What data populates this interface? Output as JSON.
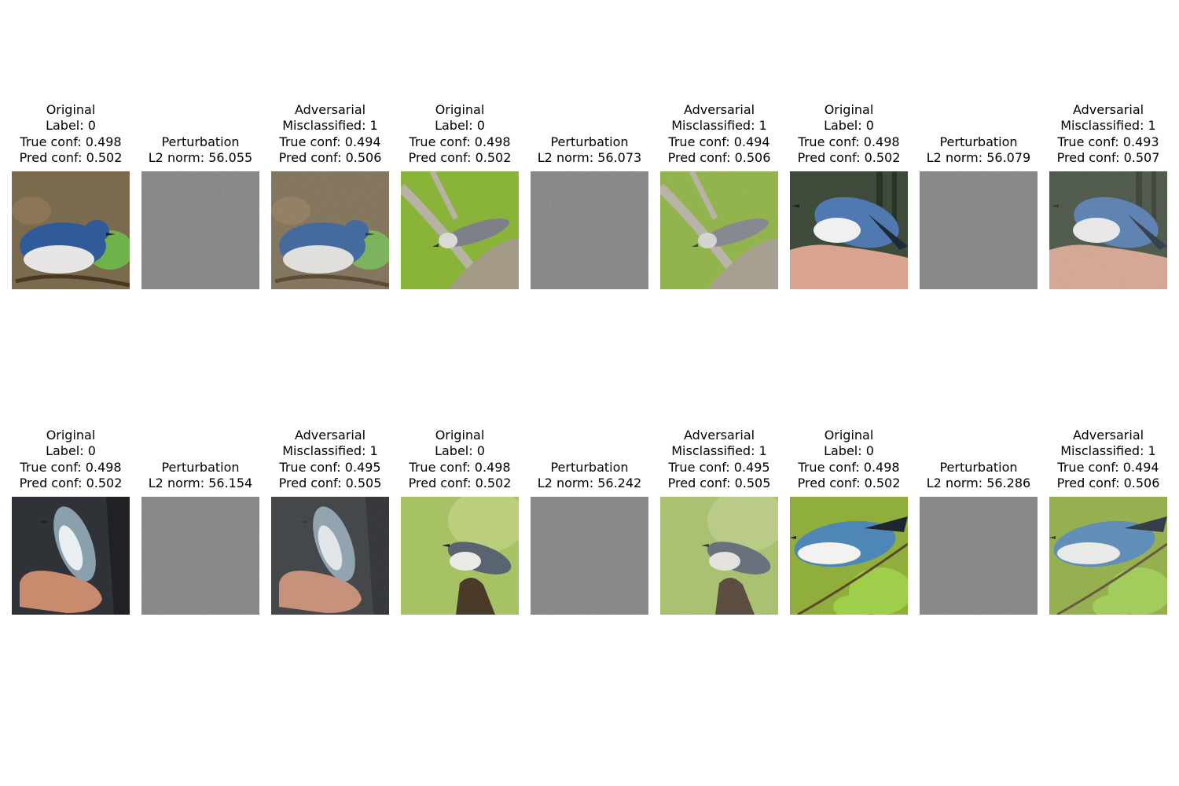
{
  "rows": [
    {
      "panels": [
        {
          "kind": "original",
          "lines": [
            "Original",
            "Label: 0",
            "True conf: 0.498",
            "Pred conf: 0.502"
          ],
          "scene": "blue-warbler-branch",
          "palette": {
            "bg": "#7a6a4e",
            "accent": "#6fb24a",
            "bird": "#2f5b9a",
            "belly": "#e8e6e4"
          }
        },
        {
          "kind": "perturbation",
          "lines": [
            "Perturbation",
            "L2 norm: 56.055"
          ]
        },
        {
          "kind": "adversarial",
          "lines": [
            "Adversarial",
            "Misclassified: 1",
            "True conf: 0.494",
            "Pred conf: 0.506"
          ],
          "scene": "blue-warbler-branch",
          "palette": {
            "bg": "#7a6a4e",
            "accent": "#6fb24a",
            "bird": "#2f5b9a",
            "belly": "#e8e6e4"
          }
        },
        {
          "kind": "original",
          "lines": [
            "Original",
            "Label: 0",
            "True conf: 0.498",
            "Pred conf: 0.502"
          ],
          "scene": "warbler-twigs-green",
          "palette": {
            "bg": "#8ab33a",
            "accent": "#b8b2a4",
            "bird": "#7d8088",
            "belly": "#d9d9d6"
          }
        },
        {
          "kind": "perturbation",
          "lines": [
            "Perturbation",
            "L2 norm: 56.073"
          ]
        },
        {
          "kind": "adversarial",
          "lines": [
            "Adversarial",
            "Misclassified: 1",
            "True conf: 0.494",
            "Pred conf: 0.506"
          ],
          "scene": "warbler-twigs-green",
          "palette": {
            "bg": "#8ab33a",
            "accent": "#b8b2a4",
            "bird": "#7d8088",
            "belly": "#d9d9d6"
          }
        },
        {
          "kind": "original",
          "lines": [
            "Original",
            "Label: 0",
            "True conf: 0.498",
            "Pred conf: 0.502"
          ],
          "scene": "warbler-in-hand-forest",
          "palette": {
            "bg": "#3e4a3a",
            "accent": "#d9a48e",
            "bird": "#4f79b0",
            "belly": "#f0f0f0"
          }
        },
        {
          "kind": "perturbation",
          "lines": [
            "Perturbation",
            "L2 norm: 56.079"
          ]
        },
        {
          "kind": "adversarial",
          "lines": [
            "Adversarial",
            "Misclassified: 1",
            "True conf: 0.493",
            "Pred conf: 0.507"
          ],
          "scene": "warbler-in-hand-forest",
          "palette": {
            "bg": "#3e4a3a",
            "accent": "#d9a48e",
            "bird": "#4f79b0",
            "belly": "#f0f0f0"
          }
        }
      ]
    },
    {
      "panels": [
        {
          "kind": "original",
          "lines": [
            "Original",
            "Label: 0",
            "True conf: 0.498",
            "Pred conf: 0.502"
          ],
          "scene": "warbler-in-hand-dark",
          "palette": {
            "bg": "#2f3236",
            "accent": "#c98a6e",
            "bird": "#8aa0ad",
            "belly": "#e9eef0"
          }
        },
        {
          "kind": "perturbation",
          "lines": [
            "Perturbation",
            "L2 norm: 56.154"
          ]
        },
        {
          "kind": "adversarial",
          "lines": [
            "Adversarial",
            "Misclassified: 1",
            "True conf: 0.495",
            "Pred conf: 0.505"
          ],
          "scene": "warbler-in-hand-dark",
          "palette": {
            "bg": "#2f3236",
            "accent": "#c98a6e",
            "bird": "#8aa0ad",
            "belly": "#e9eef0"
          }
        },
        {
          "kind": "original",
          "lines": [
            "Original",
            "Label: 0",
            "True conf: 0.498",
            "Pred conf: 0.502"
          ],
          "scene": "warbler-on-stump-green",
          "palette": {
            "bg": "#a7c264",
            "accent": "#4a3a2a",
            "bird": "#5a6470",
            "belly": "#eceae4"
          }
        },
        {
          "kind": "perturbation",
          "lines": [
            "Perturbation",
            "L2 norm: 56.242"
          ]
        },
        {
          "kind": "adversarial",
          "lines": [
            "Adversarial",
            "Misclassified: 1",
            "True conf: 0.495",
            "Pred conf: 0.505"
          ],
          "scene": "warbler-on-stump-green",
          "palette": {
            "bg": "#a7c264",
            "accent": "#4a3a2a",
            "bird": "#5a6470",
            "belly": "#eceae4"
          }
        },
        {
          "kind": "original",
          "lines": [
            "Original",
            "Label: 0",
            "True conf: 0.498",
            "Pred conf: 0.502"
          ],
          "scene": "warbler-leaves-green",
          "palette": {
            "bg": "#8fae3c",
            "accent": "#9fcf4a",
            "bird": "#4f86b8",
            "belly": "#f2f2f0"
          }
        },
        {
          "kind": "perturbation",
          "lines": [
            "Perturbation",
            "L2 norm: 56.286"
          ]
        },
        {
          "kind": "adversarial",
          "lines": [
            "Adversarial",
            "Misclassified: 1",
            "True conf: 0.494",
            "Pred conf: 0.506"
          ],
          "scene": "warbler-leaves-green",
          "palette": {
            "bg": "#8fae3c",
            "accent": "#9fcf4a",
            "bird": "#4f86b8",
            "belly": "#f2f2f0"
          }
        }
      ]
    }
  ]
}
